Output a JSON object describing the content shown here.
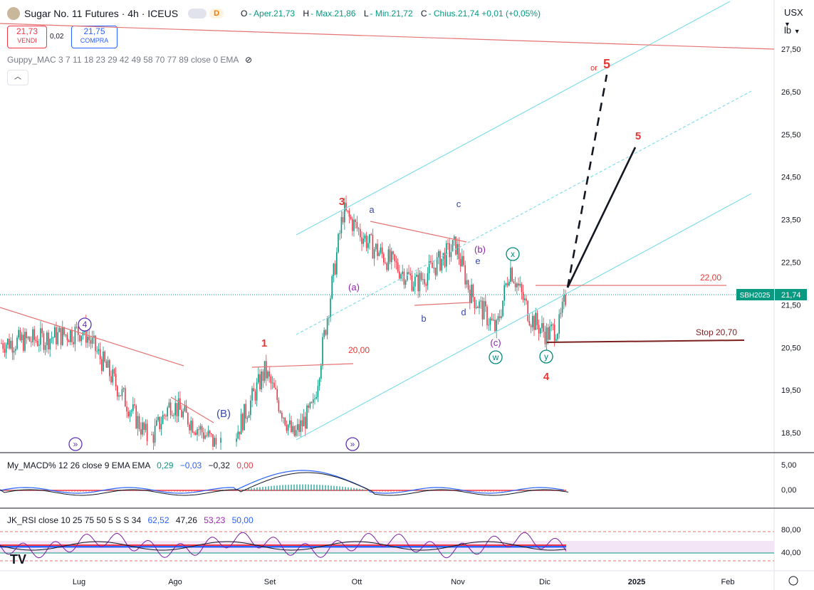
{
  "header": {
    "symbol_title": "Sugar No. 11 Futures · 4h · ICEUS",
    "badge_live": "",
    "badge_delayed": "D",
    "ohlc": [
      {
        "k": "O",
        "v": "- Aper.21,73"
      },
      {
        "k": "H",
        "v": "- Max.21,86"
      },
      {
        "k": "L",
        "v": "- Min.21,72"
      },
      {
        "k": "C",
        "v": "- Chius.21,74 +0,01 (+0,05%)"
      }
    ]
  },
  "trade": {
    "sell_price": "21,73",
    "sell_label": "VENDI",
    "spread": "0,02",
    "buy_price": "21,75",
    "buy_label": "COMPRA"
  },
  "indicators": {
    "guppy": "Guppy_MAC 3 7 11 18 23 29 42 49 58 70 77 89 close 0 EMA",
    "macd": {
      "label": "My_MACD% 12 26 close 9 EMA EMA",
      "v1": "0,29",
      "v2": "−0,03",
      "v3": "−0,32",
      "v4": "0,00",
      "c1": "#089981",
      "c2": "#2962ff",
      "c3": "#131722",
      "c4": "#f23645"
    },
    "rsi": {
      "label": "JK_RSI close 10 25 75 50 5 S S 34",
      "v1": "62,52",
      "v2": "47,26",
      "v3": "53,23",
      "v4": "50,00",
      "c1": "#2962ff",
      "c2": "#131722",
      "c3": "#9c27b0",
      "c4": "#2962ff"
    }
  },
  "axis": {
    "currency": "USX",
    "unit": "lb",
    "price_ticks": [
      "27,50",
      "26,50",
      "25,50",
      "24,50",
      "23,50",
      "22,50",
      "21,50",
      "20,50",
      "19,50",
      "18,50"
    ],
    "macd_ticks": [
      "5,00",
      "0,00"
    ],
    "rsi_ticks": [
      "80,00",
      "40,00"
    ],
    "time_ticks": [
      "Lug",
      "Ago",
      "Set",
      "Ott",
      "Nov",
      "Dic",
      "2025",
      "Feb"
    ],
    "symbol_tag": "SBH2025",
    "last_price": "21,74"
  },
  "chart_data": {
    "type": "candlestick",
    "symbol": "Sugar No. 11 Futures",
    "interval": "4h",
    "exchange": "ICEUS",
    "ylim": [
      18.0,
      28.2
    ],
    "last_price": 21.74,
    "horizontal_levels": [
      {
        "label": "22,00",
        "value": 22.0
      },
      {
        "label": "20,00",
        "value": 20.0
      },
      {
        "label": "Stop 20,70",
        "value": 20.7
      }
    ],
    "wave_labels": [
      "3",
      "1",
      "4",
      "5",
      "5",
      "or",
      "a",
      "b",
      "c",
      "d",
      "e",
      "(a)",
      "(b)",
      "(c)",
      "(B)",
      "4",
      "x",
      "w",
      "y"
    ],
    "price_path": [
      {
        "month": "Lug",
        "value": 20.9
      },
      {
        "month": "Ago",
        "value": 18.4
      },
      {
        "month": "Set",
        "value": 19.9
      },
      {
        "month": "Ott",
        "value": 23.7
      },
      {
        "month": "Nov",
        "value": 22.9
      },
      {
        "month": "Dic",
        "value": 20.8
      },
      {
        "month": "Dic",
        "value": 21.74
      }
    ],
    "colors": {
      "up": "#089981",
      "down": "#f23645",
      "channel": "#80deea",
      "wave": "#e53935"
    }
  }
}
